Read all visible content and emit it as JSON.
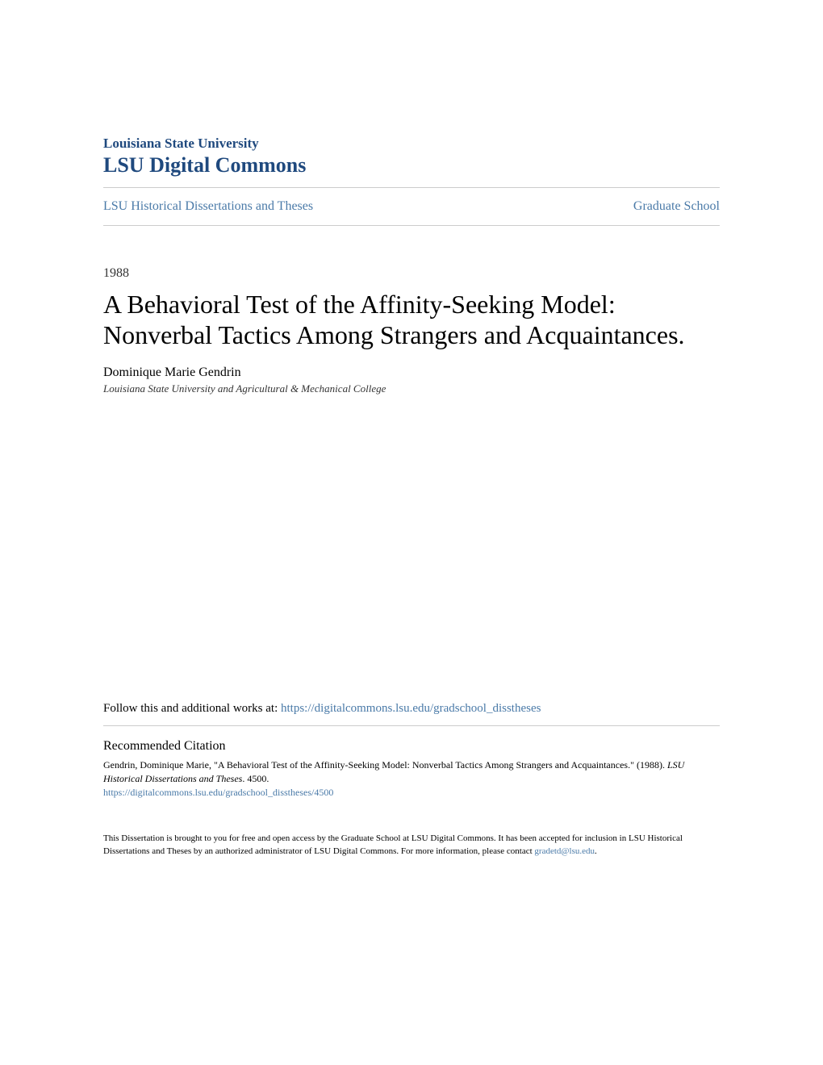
{
  "header": {
    "institution": "Louisiana State University",
    "repository": "LSU Digital Commons"
  },
  "nav": {
    "left": "LSU Historical Dissertations and Theses",
    "right": "Graduate School"
  },
  "document": {
    "year": "1988",
    "title": "A Behavioral Test of the Affinity-Seeking Model: Nonverbal Tactics Among Strangers and Acquaintances.",
    "author": "Dominique Marie Gendrin",
    "affiliation": "Louisiana State University and Agricultural & Mechanical College"
  },
  "follow": {
    "label": "Follow this and additional works at: ",
    "url": "https://digitalcommons.lsu.edu/gradschool_disstheses"
  },
  "citation": {
    "heading": "Recommended Citation",
    "text_part1": "Gendrin, Dominique Marie, \"A Behavioral Test of the Affinity-Seeking Model: Nonverbal Tactics Among Strangers and Acquaintances.\" (1988). ",
    "text_italic": "LSU Historical Dissertations and Theses",
    "text_part2": ". 4500.",
    "url": "https://digitalcommons.lsu.edu/gradschool_disstheses/4500"
  },
  "footer": {
    "text": "This Dissertation is brought to you for free and open access by the Graduate School at LSU Digital Commons. It has been accepted for inclusion in LSU Historical Dissertations and Theses by an authorized administrator of LSU Digital Commons. For more information, please contact ",
    "email": "gradetd@lsu.edu",
    "period": "."
  },
  "colors": {
    "link": "#4a7aa8",
    "heading": "#1f497e",
    "text": "#000000",
    "border": "#cccccc",
    "background": "#ffffff"
  }
}
